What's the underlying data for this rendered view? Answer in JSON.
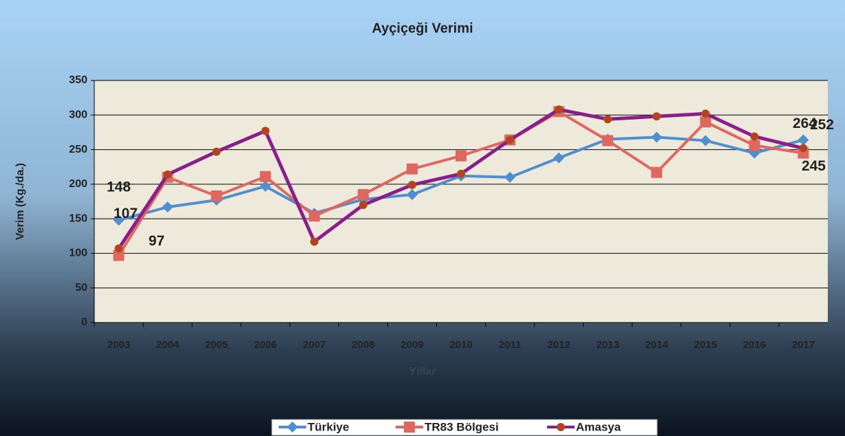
{
  "chart_data": {
    "type": "line",
    "title": "Ayçiçeği Verimi",
    "x_label": "Yıllar",
    "y_label": "Verim (Kg./da.)",
    "categories": [
      "2003",
      "2004",
      "2005",
      "2006",
      "2007",
      "2008",
      "2009",
      "2010",
      "2011",
      "2012",
      "2013",
      "2014",
      "2015",
      "2016",
      "2017"
    ],
    "ylim": [
      0,
      350
    ],
    "yticks": [
      0,
      50,
      100,
      150,
      200,
      250,
      300,
      350
    ],
    "grid": true,
    "legend": "bottom",
    "series": [
      {
        "name": "Türkiye",
        "color": "#4f8fd0",
        "marker": "diamond",
        "values": [
          148,
          167,
          177,
          197,
          158,
          178,
          185,
          212,
          210,
          238,
          265,
          268,
          263,
          245,
          264
        ],
        "value_labels": [
          148,
          null,
          null,
          null,
          null,
          null,
          null,
          null,
          null,
          null,
          null,
          null,
          null,
          null,
          264
        ]
      },
      {
        "name": "TR83 Bölgesi",
        "color": "#e0675f",
        "marker": "square",
        "values": [
          97,
          210,
          183,
          211,
          154,
          185,
          222,
          241,
          264,
          305,
          263,
          217,
          290,
          256,
          245
        ],
        "value_labels": [
          97,
          null,
          null,
          null,
          null,
          null,
          null,
          null,
          null,
          null,
          null,
          null,
          null,
          null,
          245
        ]
      },
      {
        "name": "Amasya",
        "color": "#8a1f8c",
        "marker": "circle",
        "values": [
          107,
          214,
          247,
          277,
          117,
          170,
          199,
          215,
          264,
          308,
          294,
          298,
          302,
          269,
          252
        ],
        "value_labels": [
          107,
          null,
          null,
          null,
          null,
          null,
          null,
          null,
          null,
          null,
          null,
          null,
          null,
          null,
          252
        ]
      }
    ]
  }
}
